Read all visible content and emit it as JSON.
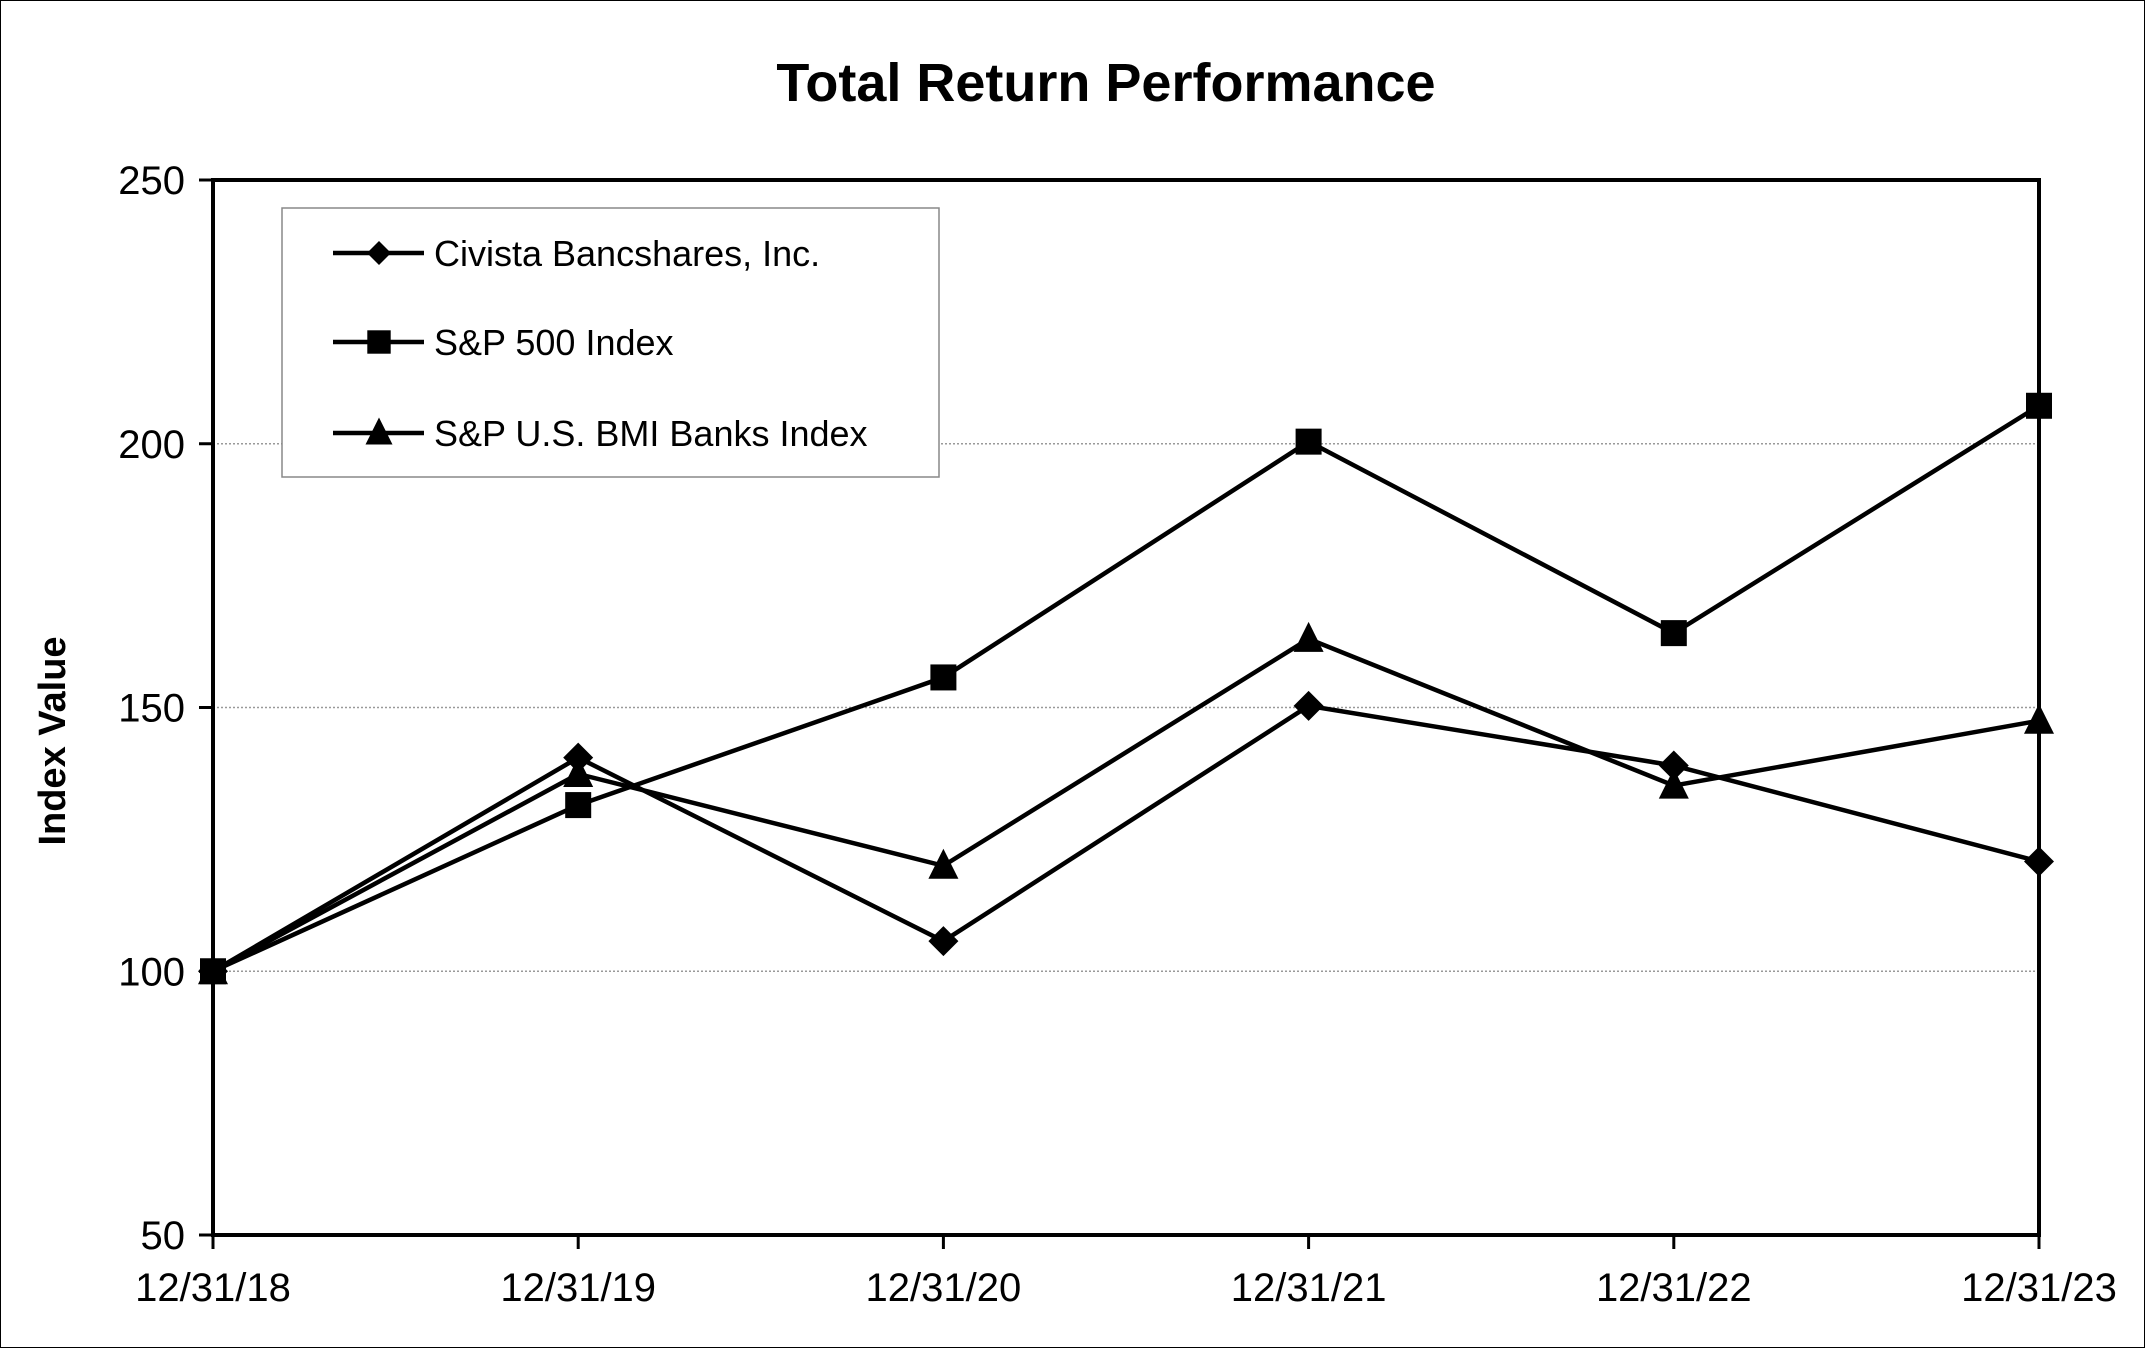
{
  "chart_data": {
    "type": "line",
    "title": "Total Return Performance",
    "xlabel": "",
    "ylabel": "Index Value",
    "categories": [
      "12/31/18",
      "12/31/19",
      "12/31/20",
      "12/31/21",
      "12/31/22",
      "12/31/23"
    ],
    "ylim": [
      50,
      250
    ],
    "yticks": [
      50,
      100,
      150,
      200,
      250
    ],
    "grid": true,
    "legend_position": "top-left",
    "series": [
      {
        "name": "Civista Bancshares, Inc.",
        "marker": "diamond",
        "values": [
          100,
          140.5,
          105.7,
          150.3,
          139.0,
          120.8
        ]
      },
      {
        "name": "S&P 500 Index",
        "marker": "square",
        "values": [
          100,
          131.5,
          155.7,
          200.4,
          164.1,
          207.2
        ]
      },
      {
        "name": "S&P U.S. BMI Banks Index",
        "marker": "triangle",
        "values": [
          100,
          137.4,
          120.0,
          163.0,
          135.2,
          147.5
        ]
      }
    ],
    "colors": {
      "line": "#000000",
      "grid": "#999999",
      "background": "#ffffff"
    }
  }
}
